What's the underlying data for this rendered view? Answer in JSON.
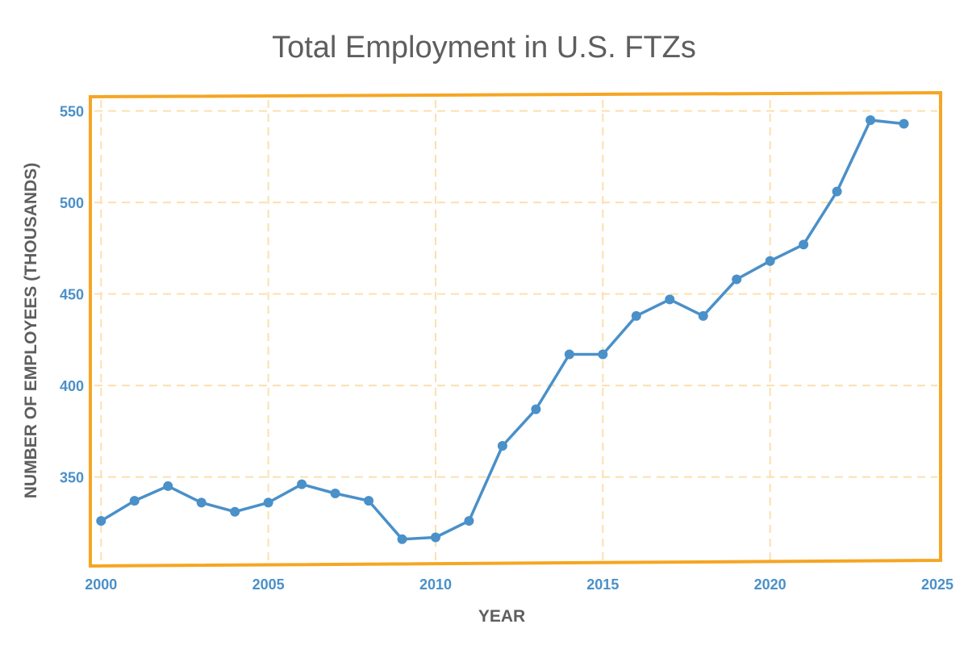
{
  "chart_data": {
    "type": "line",
    "title": "Total Employment in U.S. FTZs",
    "xlabel": "YEAR",
    "ylabel": "NUMBER OF EMPLOYEES (THOUSANDS)",
    "xlim": [
      1999.8,
      2025
    ],
    "ylim": [
      304,
      556
    ],
    "xticks": [
      2000,
      2005,
      2010,
      2015,
      2020,
      2025
    ],
    "yticks": [
      350,
      400,
      450,
      500,
      550
    ],
    "grid": true,
    "series": [
      {
        "x": [
          2000,
          2001,
          2002,
          2003,
          2004,
          2005,
          2006,
          2007,
          2008,
          2009,
          2010,
          2011,
          2012,
          2013,
          2014,
          2015,
          2016,
          2017,
          2018,
          2019,
          2020,
          2021,
          2022,
          2023,
          2024
        ],
        "values": [
          326,
          337,
          345,
          336,
          331,
          336,
          346,
          341,
          337,
          316,
          317,
          326,
          367,
          387,
          417,
          417,
          438,
          447,
          438,
          458,
          468,
          477,
          506,
          545,
          543
        ]
      }
    ],
    "colors": {
      "line": "#4a90c9",
      "frame": "#f5a623",
      "grid": "#fbe0ae",
      "tick_text": "#4a90c9",
      "axis_text": "#5e5e5e",
      "title_text": "#5e5e5e"
    }
  }
}
